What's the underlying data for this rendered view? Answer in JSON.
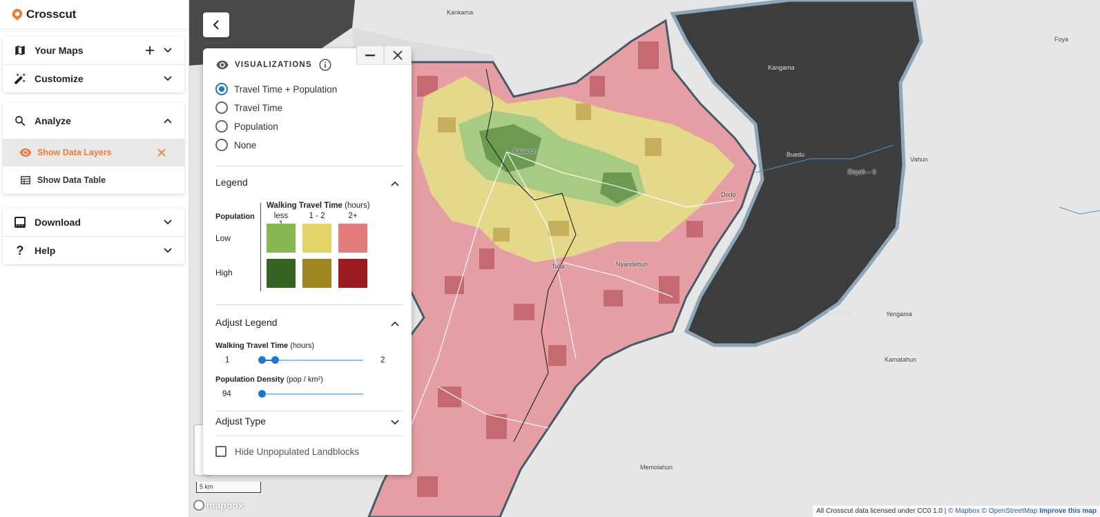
{
  "app": {
    "name": "Crosscut",
    "brand_color": "#f07a3c"
  },
  "sidebar": {
    "your_maps": {
      "label": "Your Maps",
      "icon": "map-icon"
    },
    "customize": {
      "label": "Customize",
      "icon": "tools-icon"
    },
    "analyze": {
      "label": "Analyze",
      "icon": "search-icon",
      "items": [
        {
          "label": "Show Data Layers",
          "icon": "eye-icon",
          "active": true
        },
        {
          "label": "Show Data Table",
          "icon": "table-icon",
          "active": false
        }
      ]
    },
    "download": {
      "label": "Download",
      "icon": "download-icon"
    },
    "help": {
      "label": "Help",
      "icon": "help-icon"
    }
  },
  "map": {
    "places": [
      {
        "name": "Kankama",
        "dark": false
      },
      {
        "name": "Kailahun",
        "dark": false
      },
      {
        "name": "Kangama",
        "dark": true
      },
      {
        "name": "Buedu",
        "dark": true
      },
      {
        "name": "Boyah – II",
        "dark": false
      },
      {
        "name": "Vahun",
        "dark": false
      },
      {
        "name": "Foya",
        "dark": false
      },
      {
        "name": "Dodo",
        "dark": false
      },
      {
        "name": "Talia",
        "dark": false
      },
      {
        "name": "Nyandehun",
        "dark": false
      },
      {
        "name": "Gorahun",
        "dark": true
      },
      {
        "name": "Yengama",
        "dark": false
      },
      {
        "name": "Kamatahun",
        "dark": false
      },
      {
        "name": "Memolahun",
        "dark": false
      }
    ],
    "scale_label": "5 km",
    "logo": "mapbox",
    "attribution": {
      "text": "All Crosscut data licensed under CC0 1.0 | ",
      "mapbox": "© Mapbox",
      "osm": "© OpenStreetMap",
      "improve": "Improve this map"
    }
  },
  "viz": {
    "title": "VISUALIZATIONS",
    "options": [
      {
        "label": "Travel Time + Population",
        "selected": true
      },
      {
        "label": "Travel Time",
        "selected": false
      },
      {
        "label": "Population",
        "selected": false
      },
      {
        "label": "None",
        "selected": false
      }
    ],
    "legend": {
      "title": "Legend",
      "row_header": "Population",
      "col_header_bold": "Walking Travel Time",
      "col_header_unit": "(hours)",
      "columns": [
        "less 1",
        "1 - 2",
        "2+"
      ],
      "rows": [
        {
          "label": "Low",
          "colors": [
            "#86b751",
            "#e3d46a",
            "#e47c7c"
          ]
        },
        {
          "label": "High",
          "colors": [
            "#356322",
            "#a18521",
            "#9b1b21"
          ]
        }
      ]
    },
    "adjust_legend": {
      "title": "Adjust Legend",
      "travel": {
        "label_bold": "Walking Travel Time",
        "label_unit": "(hours)",
        "min": "1",
        "max": "2",
        "low_fraction": 0.02,
        "high_fraction": 0.15
      },
      "density": {
        "label_bold": "Population Density",
        "label_unit": "(pop / km²)",
        "value": "94",
        "fraction": 0.0
      }
    },
    "adjust_type": {
      "title": "Adjust Type"
    },
    "hide_unpopulated": {
      "label": "Hide Unpopulated Landblocks",
      "checked": false
    }
  }
}
